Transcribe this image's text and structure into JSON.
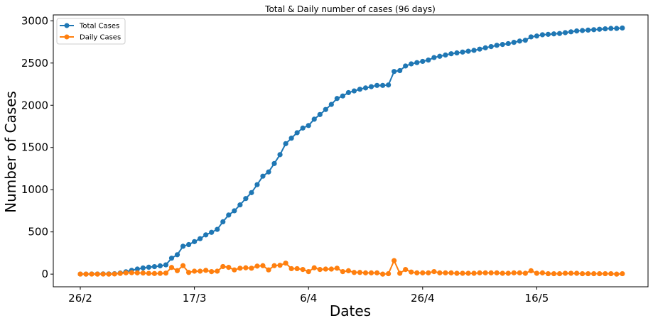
{
  "chart_data": {
    "type": "line",
    "title": "Total & Daily number of cases (96 days)",
    "xlabel": "Dates",
    "ylabel": "Number of Cases",
    "ylim": [
      -150,
      3070
    ],
    "yticks": [
      0,
      500,
      1000,
      1500,
      2000,
      2500,
      3000
    ],
    "xticks": [
      {
        "index": 0,
        "label": "26/2"
      },
      {
        "index": 20,
        "label": "17/3"
      },
      {
        "index": 40,
        "label": "6/4"
      },
      {
        "index": 60,
        "label": "26/4"
      },
      {
        "index": 80,
        "label": "16/5"
      }
    ],
    "legend_position": "top-left",
    "grid": false,
    "series": [
      {
        "name": "Total Cases",
        "color": "#1f77b4",
        "values": [
          1,
          1,
          2,
          2,
          3,
          3,
          5,
          13,
          28,
          45,
          60,
          73,
          82,
          89,
          98,
          110,
          189,
          230,
          330,
          350,
          385,
          420,
          465,
          495,
          530,
          620,
          700,
          750,
          820,
          895,
          965,
          1060,
          1160,
          1210,
          1310,
          1415,
          1545,
          1610,
          1675,
          1730,
          1760,
          1835,
          1890,
          1950,
          2010,
          2080,
          2110,
          2150,
          2170,
          2190,
          2205,
          2220,
          2235,
          2235,
          2240,
          2400,
          2410,
          2465,
          2490,
          2505,
          2520,
          2535,
          2565,
          2580,
          2595,
          2610,
          2620,
          2630,
          2640,
          2650,
          2665,
          2680,
          2695,
          2710,
          2720,
          2730,
          2745,
          2760,
          2770,
          2810,
          2820,
          2835,
          2840,
          2845,
          2850,
          2860,
          2870,
          2880,
          2885,
          2890,
          2895,
          2900,
          2905,
          2910,
          2910,
          2915
        ]
      },
      {
        "name": "Daily Cases",
        "color": "#ff7f0e",
        "values": [
          1,
          0,
          1,
          0,
          1,
          0,
          2,
          8,
          15,
          17,
          15,
          13,
          9,
          7,
          9,
          12,
          79,
          41,
          100,
          20,
          35,
          35,
          45,
          30,
          35,
          90,
          80,
          50,
          70,
          75,
          70,
          95,
          100,
          50,
          100,
          105,
          130,
          65,
          65,
          55,
          30,
          75,
          55,
          60,
          60,
          70,
          30,
          40,
          20,
          20,
          15,
          15,
          15,
          0,
          5,
          160,
          10,
          55,
          25,
          15,
          15,
          15,
          30,
          15,
          15,
          15,
          10,
          10,
          10,
          10,
          15,
          15,
          15,
          15,
          10,
          10,
          15,
          15,
          10,
          40,
          10,
          15,
          5,
          5,
          5,
          10,
          10,
          10,
          5,
          5,
          5,
          5,
          5,
          5,
          0,
          5
        ]
      }
    ]
  }
}
